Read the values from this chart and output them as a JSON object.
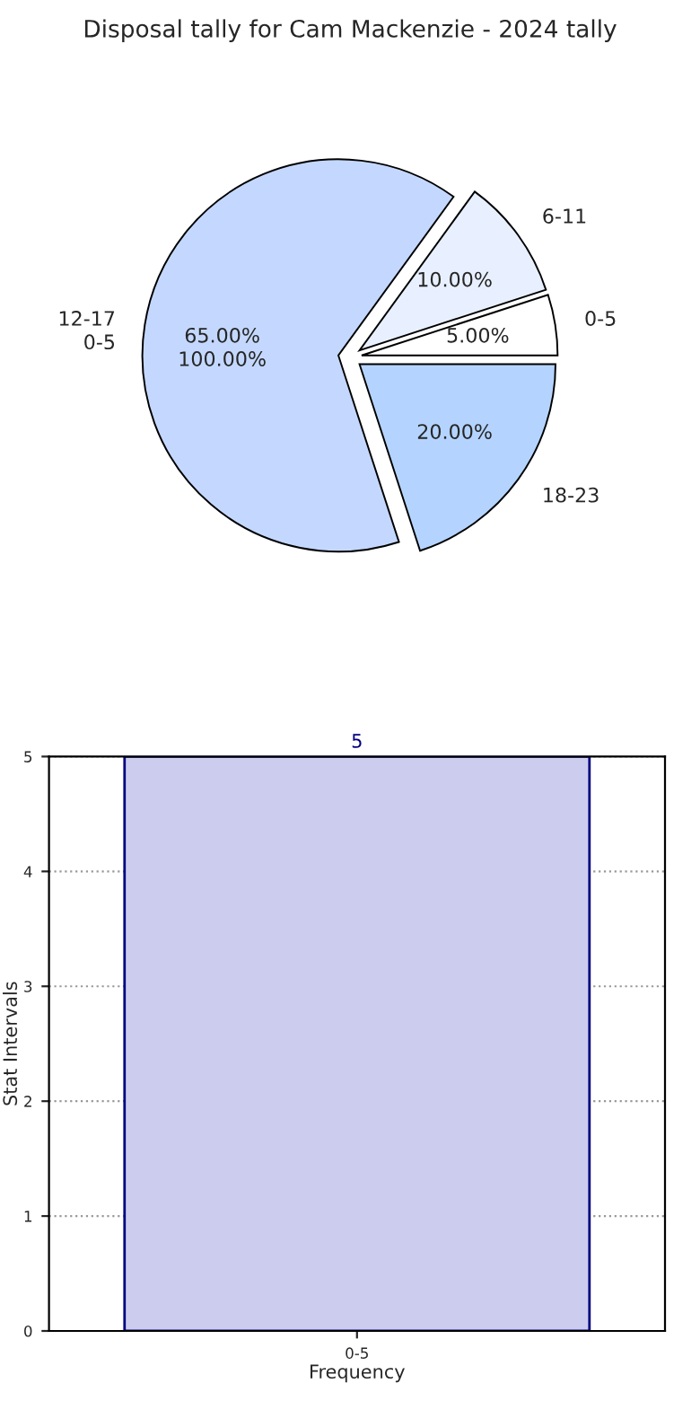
{
  "chart_data": [
    {
      "type": "pie",
      "title": "Disposal tally for Cam Mackenzie - 2024 tally",
      "categories": [
        "0-5",
        "6-11",
        "12-17",
        "18-23"
      ],
      "values": [
        5,
        10,
        65,
        20
      ],
      "value_labels": [
        "5.00%",
        "10.00%",
        "65.00%",
        "20.00%"
      ],
      "colors": [
        "#ffffff",
        "#e8f0ff",
        "#c4d8ff",
        "#b4d4ff"
      ],
      "annotations": [
        "0-5",
        "100.00%"
      ]
    },
    {
      "type": "bar",
      "categories": [
        "0-5"
      ],
      "values": [
        5
      ],
      "color": "#ccccee",
      "xlabel": "Frequency",
      "ylabel": "Stat Intervals",
      "ylim": [
        0,
        5
      ],
      "yticks": [
        0,
        1,
        2,
        3,
        4,
        5
      ],
      "grid": true,
      "data_labels": true
    }
  ]
}
